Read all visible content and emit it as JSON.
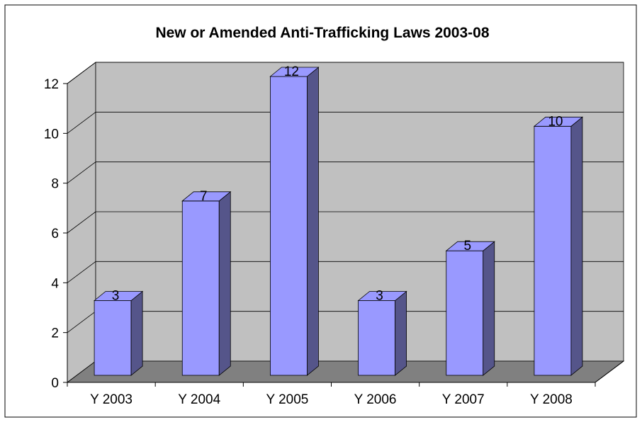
{
  "chart_data": {
    "type": "bar",
    "title": "New or Amended Anti-Trafficking Laws 2003-08",
    "categories": [
      "Y 2003",
      "Y 2004",
      "Y 2005",
      "Y 2006",
      "Y 2007",
      "Y 2008"
    ],
    "values": [
      3,
      7,
      12,
      3,
      5,
      10
    ],
    "data_labels": [
      "3",
      "7",
      "12",
      "3",
      "5",
      "10"
    ],
    "y_ticks": [
      "0",
      "2",
      "4",
      "6",
      "8",
      "10",
      "12"
    ],
    "ylim": [
      0,
      12
    ],
    "xlabel": "",
    "ylabel": "",
    "grid": true,
    "legend": "none",
    "three_d": true,
    "colors": {
      "bar_front": "#9999ff",
      "bar_top": "#9999ff",
      "bar_side": "#55558a",
      "back_wall": "#c0c0c0",
      "side_wall": "#c0c0c0",
      "floor": "#808080",
      "gridline": "#000000"
    }
  }
}
